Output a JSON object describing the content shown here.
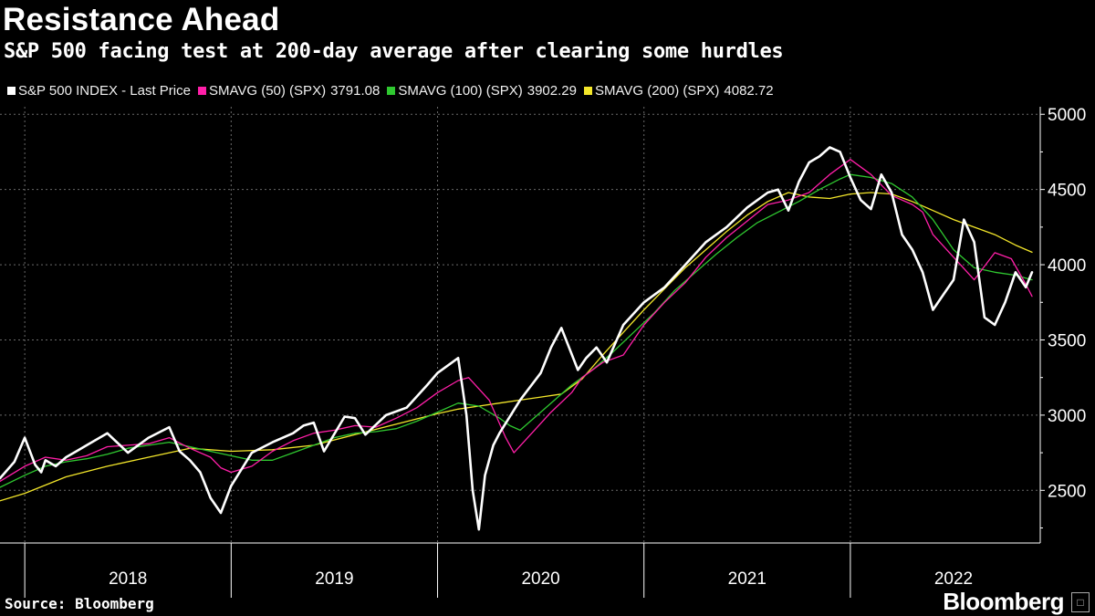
{
  "title": "Resistance Ahead",
  "subtitle": "S&P 500 facing test at 200-day average after clearing some hurdles",
  "source": "Source: Bloomberg",
  "brand": "Bloomberg",
  "chart_data": {
    "type": "line",
    "title": "Resistance Ahead",
    "subtitle": "S&P 500 facing test at 200-day average after clearing some hurdles",
    "xlabel": "",
    "ylabel": "",
    "ylim": [
      2150,
      5050
    ],
    "y_ticks": [
      2500,
      3000,
      3500,
      4000,
      4500,
      5000
    ],
    "x_range": [
      2017.88,
      2022.92
    ],
    "year_labels": [
      "2018",
      "2019",
      "2020",
      "2021",
      "2022"
    ],
    "grid": true,
    "legend_position": "top-left",
    "series": [
      {
        "name": "S&P 500 INDEX - Last Price",
        "color": "#ffffff",
        "x": [
          2017.88,
          2017.95,
          2018.0,
          2018.05,
          2018.08,
          2018.1,
          2018.15,
          2018.2,
          2018.25,
          2018.3,
          2018.4,
          2018.5,
          2018.6,
          2018.7,
          2018.75,
          2018.8,
          2018.85,
          2018.9,
          2018.95,
          2019.0,
          2019.1,
          2019.2,
          2019.3,
          2019.35,
          2019.4,
          2019.45,
          2019.55,
          2019.6,
          2019.65,
          2019.75,
          2019.85,
          2019.95,
          2020.0,
          2020.1,
          2020.14,
          2020.17,
          2020.2,
          2020.23,
          2020.27,
          2020.3,
          2020.4,
          2020.5,
          2020.55,
          2020.6,
          2020.68,
          2020.72,
          2020.77,
          2020.82,
          2020.9,
          2021.0,
          2021.1,
          2021.2,
          2021.3,
          2021.4,
          2021.5,
          2021.6,
          2021.65,
          2021.7,
          2021.75,
          2021.8,
          2021.85,
          2021.9,
          2021.95,
          2022.0,
          2022.05,
          2022.1,
          2022.15,
          2022.2,
          2022.25,
          2022.3,
          2022.35,
          2022.4,
          2022.45,
          2022.5,
          2022.55,
          2022.6,
          2022.65,
          2022.7,
          2022.75,
          2022.8,
          2022.85,
          2022.88
        ],
        "values": [
          2580,
          2690,
          2850,
          2670,
          2620,
          2700,
          2660,
          2720,
          2760,
          2800,
          2880,
          2750,
          2850,
          2920,
          2760,
          2700,
          2620,
          2450,
          2350,
          2530,
          2750,
          2820,
          2880,
          2930,
          2950,
          2760,
          2990,
          2980,
          2870,
          3000,
          3050,
          3200,
          3280,
          3380,
          3000,
          2500,
          2240,
          2600,
          2800,
          2880,
          3100,
          3280,
          3450,
          3580,
          3300,
          3380,
          3450,
          3350,
          3600,
          3750,
          3850,
          4000,
          4150,
          4250,
          4380,
          4480,
          4500,
          4360,
          4550,
          4680,
          4720,
          4780,
          4750,
          4580,
          4430,
          4370,
          4600,
          4480,
          4200,
          4100,
          3950,
          3700,
          3800,
          3900,
          4300,
          4150,
          3650,
          3600,
          3750,
          3950,
          3850,
          3950
        ]
      },
      {
        "name": "SMAVG (50) (SPX)",
        "legend_value": "3791.08",
        "color": "#ff1fa8",
        "x": [
          2017.88,
          2018.0,
          2018.1,
          2018.2,
          2018.3,
          2018.4,
          2018.5,
          2018.6,
          2018.7,
          2018.8,
          2018.9,
          2018.95,
          2019.0,
          2019.1,
          2019.2,
          2019.3,
          2019.4,
          2019.5,
          2019.6,
          2019.7,
          2019.8,
          2019.9,
          2020.0,
          2020.1,
          2020.15,
          2020.25,
          2020.33,
          2020.37,
          2020.45,
          2020.55,
          2020.65,
          2020.7,
          2020.8,
          2020.9,
          2021.0,
          2021.1,
          2021.2,
          2021.3,
          2021.4,
          2021.5,
          2021.6,
          2021.7,
          2021.8,
          2021.9,
          2022.0,
          2022.1,
          2022.2,
          2022.3,
          2022.35,
          2022.4,
          2022.5,
          2022.6,
          2022.7,
          2022.78,
          2022.85,
          2022.88
        ],
        "values": [
          2560,
          2660,
          2720,
          2700,
          2730,
          2790,
          2800,
          2810,
          2850,
          2780,
          2720,
          2650,
          2620,
          2660,
          2760,
          2830,
          2880,
          2900,
          2930,
          2920,
          2980,
          3050,
          3150,
          3230,
          3250,
          3100,
          2850,
          2750,
          2870,
          3020,
          3150,
          3250,
          3350,
          3400,
          3600,
          3750,
          3880,
          4050,
          4180,
          4290,
          4400,
          4430,
          4480,
          4600,
          4700,
          4600,
          4460,
          4400,
          4350,
          4200,
          4050,
          3900,
          4080,
          4040,
          3870,
          3790
        ]
      },
      {
        "name": "SMAVG (100) (SPX)",
        "legend_value": "3902.29",
        "color": "#2fc830",
        "x": [
          2017.88,
          2018.0,
          2018.1,
          2018.2,
          2018.3,
          2018.4,
          2018.5,
          2018.6,
          2018.7,
          2018.8,
          2018.9,
          2019.0,
          2019.1,
          2019.2,
          2019.3,
          2019.4,
          2019.5,
          2019.6,
          2019.7,
          2019.8,
          2019.9,
          2020.0,
          2020.1,
          2020.2,
          2020.3,
          2020.35,
          2020.4,
          2020.45,
          2020.55,
          2020.65,
          2020.75,
          2020.85,
          2020.95,
          2021.05,
          2021.15,
          2021.25,
          2021.35,
          2021.45,
          2021.55,
          2021.65,
          2021.75,
          2021.85,
          2021.95,
          2022.0,
          2022.1,
          2022.2,
          2022.3,
          2022.4,
          2022.5,
          2022.6,
          2022.7,
          2022.8,
          2022.88
        ],
        "values": [
          2520,
          2600,
          2660,
          2690,
          2710,
          2740,
          2780,
          2800,
          2820,
          2790,
          2760,
          2730,
          2700,
          2700,
          2750,
          2800,
          2850,
          2880,
          2890,
          2910,
          2960,
          3020,
          3080,
          3060,
          2980,
          2930,
          2900,
          2960,
          3080,
          3200,
          3300,
          3420,
          3550,
          3680,
          3830,
          3950,
          4070,
          4180,
          4280,
          4350,
          4420,
          4500,
          4570,
          4600,
          4580,
          4540,
          4450,
          4300,
          4100,
          3980,
          3950,
          3930,
          3900
        ]
      },
      {
        "name": "SMAVG (200) (SPX)",
        "legend_value": "4082.72",
        "color": "#f3e62a",
        "x": [
          2017.88,
          2018.0,
          2018.2,
          2018.4,
          2018.6,
          2018.8,
          2019.0,
          2019.2,
          2019.4,
          2019.6,
          2019.8,
          2020.0,
          2020.1,
          2020.2,
          2020.3,
          2020.4,
          2020.5,
          2020.6,
          2020.7,
          2020.8,
          2020.9,
          2021.0,
          2021.1,
          2021.2,
          2021.3,
          2021.4,
          2021.5,
          2021.6,
          2021.7,
          2021.8,
          2021.9,
          2022.0,
          2022.1,
          2022.2,
          2022.3,
          2022.4,
          2022.5,
          2022.6,
          2022.7,
          2022.8,
          2022.88
        ],
        "values": [
          2430,
          2480,
          2590,
          2660,
          2720,
          2780,
          2760,
          2770,
          2800,
          2870,
          2940,
          3010,
          3040,
          3060,
          3080,
          3100,
          3120,
          3140,
          3240,
          3400,
          3550,
          3700,
          3840,
          3980,
          4100,
          4220,
          4330,
          4420,
          4480,
          4450,
          4440,
          4470,
          4480,
          4470,
          4420,
          4360,
          4300,
          4250,
          4200,
          4130,
          4083
        ]
      }
    ]
  }
}
